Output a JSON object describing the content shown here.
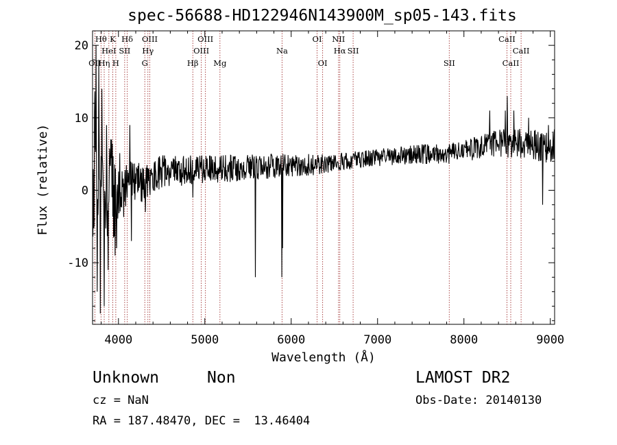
{
  "chart_data": {
    "type": "line",
    "title": "spec-56688-HD122946N143900M_sp05-143.fits",
    "xlabel": "Wavelength (Å)",
    "ylabel": "Flux (relative)",
    "xlim": [
      3700,
      9050
    ],
    "ylim": [
      -18.5,
      22
    ],
    "xticks": [
      4000,
      5000,
      6000,
      7000,
      8000,
      9000
    ],
    "xtick_labels": [
      "4000",
      "5000",
      "6000",
      "7000",
      "8000",
      "9000"
    ],
    "yticks": [
      -10,
      0,
      10,
      20
    ],
    "ytick_labels": [
      "-10",
      "0",
      "10",
      "20"
    ],
    "line_color": "#000000",
    "marker_color": "#a03030",
    "lines": [
      {
        "name": "OII",
        "wave": 3727,
        "row": 3
      },
      {
        "name": "Hθ",
        "wave": 3798,
        "row": 1
      },
      {
        "name": "Hη",
        "wave": 3835,
        "row": 3
      },
      {
        "name": "HeI",
        "wave": 3889,
        "row": 2
      },
      {
        "name": "K",
        "wave": 3934,
        "row": 1
      },
      {
        "name": "H",
        "wave": 3969,
        "row": 3
      },
      {
        "name": "SII",
        "wave": 4072,
        "row": 2
      },
      {
        "name": "Hδ",
        "wave": 4102,
        "row": 1
      },
      {
        "name": "G",
        "wave": 4305,
        "row": 3
      },
      {
        "name": "Hγ",
        "wave": 4341,
        "row": 2
      },
      {
        "name": "OIII",
        "wave": 4363,
        "row": 1
      },
      {
        "name": "Hβ",
        "wave": 4861,
        "row": 3
      },
      {
        "name": "OIII",
        "wave": 4959,
        "row": 2
      },
      {
        "name": "OIII",
        "wave": 5007,
        "row": 1
      },
      {
        "name": "Mg",
        "wave": 5175,
        "row": 3
      },
      {
        "name": "Na",
        "wave": 5894,
        "row": 2
      },
      {
        "name": "OI",
        "wave": 6300,
        "row": 1
      },
      {
        "name": "OI",
        "wave": 6364,
        "row": 3
      },
      {
        "name": "NII",
        "wave": 6548,
        "row": 1
      },
      {
        "name": "Hα",
        "wave": 6563,
        "row": 2
      },
      {
        "name": "SII",
        "wave": 6717,
        "row": 2
      },
      {
        "name": "SII",
        "wave": 7830,
        "row": 3
      },
      {
        "name": "CaII",
        "wave": 8498,
        "row": 1
      },
      {
        "name": "CaII",
        "wave": 8542,
        "row": 3
      },
      {
        "name": "CaII",
        "wave": 8662,
        "row": 2
      }
    ],
    "flux_anchors": [
      [
        3700,
        0
      ],
      [
        3730,
        6
      ],
      [
        3760,
        -2
      ],
      [
        3800,
        4
      ],
      [
        3850,
        -3
      ],
      [
        3900,
        2
      ],
      [
        3950,
        -1
      ],
      [
        4000,
        1
      ],
      [
        4100,
        0
      ],
      [
        4200,
        1.5
      ],
      [
        4300,
        1
      ],
      [
        4400,
        2
      ],
      [
        4500,
        2.5
      ],
      [
        4700,
        2.5
      ],
      [
        5000,
        3
      ],
      [
        5300,
        3
      ],
      [
        5600,
        3.2
      ],
      [
        6000,
        3.5
      ],
      [
        6300,
        3.5
      ],
      [
        6600,
        4
      ],
      [
        7000,
        4.5
      ],
      [
        7500,
        5
      ],
      [
        7800,
        5
      ],
      [
        8000,
        5.5
      ],
      [
        8200,
        6
      ],
      [
        8400,
        6.5
      ],
      [
        8600,
        6.5
      ],
      [
        8800,
        6.2
      ],
      [
        9050,
        6
      ]
    ],
    "flux_noise": [
      [
        3700,
        9
      ],
      [
        3900,
        7
      ],
      [
        4000,
        5
      ],
      [
        4200,
        3
      ],
      [
        4400,
        2.4
      ],
      [
        5000,
        2
      ],
      [
        6000,
        1.6
      ],
      [
        6600,
        1.2
      ],
      [
        7000,
        1.2
      ],
      [
        8000,
        1.5
      ],
      [
        8400,
        2
      ],
      [
        8800,
        2.2
      ],
      [
        9050,
        2.5
      ]
    ],
    "flux_features": [
      [
        3740,
        20
      ],
      [
        3752,
        -14
      ],
      [
        3770,
        18
      ],
      [
        3790,
        -17
      ],
      [
        3810,
        14
      ],
      [
        3835,
        -16
      ],
      [
        3860,
        9
      ],
      [
        3880,
        -11
      ],
      [
        3920,
        7
      ],
      [
        3960,
        -9
      ],
      [
        3980,
        -8
      ],
      [
        4130,
        9
      ],
      [
        4150,
        -7
      ],
      [
        4310,
        -3
      ],
      [
        4860,
        -1
      ],
      [
        5585,
        -12
      ],
      [
        5890,
        -12
      ],
      [
        5900,
        -8
      ],
      [
        6200,
        5
      ],
      [
        8300,
        11
      ],
      [
        8480,
        11
      ],
      [
        8500,
        13
      ],
      [
        8580,
        11
      ],
      [
        8750,
        10
      ],
      [
        8910,
        -2
      ],
      [
        8980,
        9
      ],
      [
        9000,
        7
      ]
    ]
  },
  "info": {
    "class": "Unknown",
    "subclass": "Non",
    "survey": "LAMOST DR2",
    "obs_date": "Obs-Date: 20140130",
    "redshift": "cz = NaN",
    "coords": "RA = 187.48470, DEC =  13.46404"
  }
}
